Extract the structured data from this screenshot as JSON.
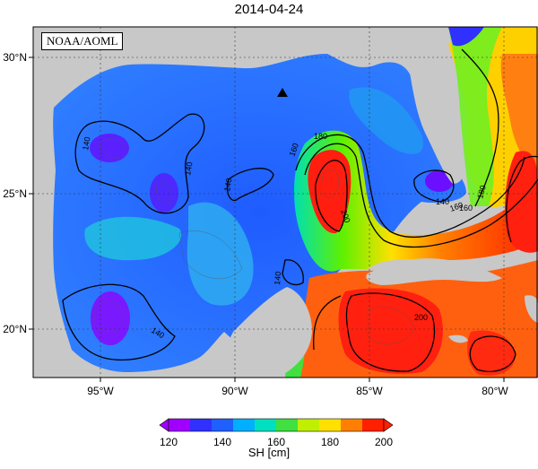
{
  "title": "2014-04-24",
  "credit": "NOAA/AOML",
  "lon_labels": [
    "95°W",
    "90°W",
    "85°W",
    "80°W"
  ],
  "lat_labels": [
    "30°N",
    "25°N",
    "20°N"
  ],
  "contour_labels": [
    "140",
    "140",
    "140",
    "140",
    "140",
    "160",
    "180",
    "200",
    "200",
    "140",
    "160",
    "180",
    "160"
  ],
  "colorbar": {
    "label": "SH [cm]",
    "ticks": [
      "120",
      "140",
      "160",
      "180",
      "200"
    ],
    "colors": [
      "#a000ff",
      "#3030ff",
      "#00b0ff",
      "#00e0c0",
      "#40e040",
      "#c0f000",
      "#ffff00",
      "#ffb000",
      "#ff6000",
      "#ff0000"
    ]
  },
  "colors": {
    "land": "#c8c8c8",
    "ocean_low": "#1e60ff",
    "ocean_high": "#ff2a1a"
  },
  "marker": "triangle"
}
